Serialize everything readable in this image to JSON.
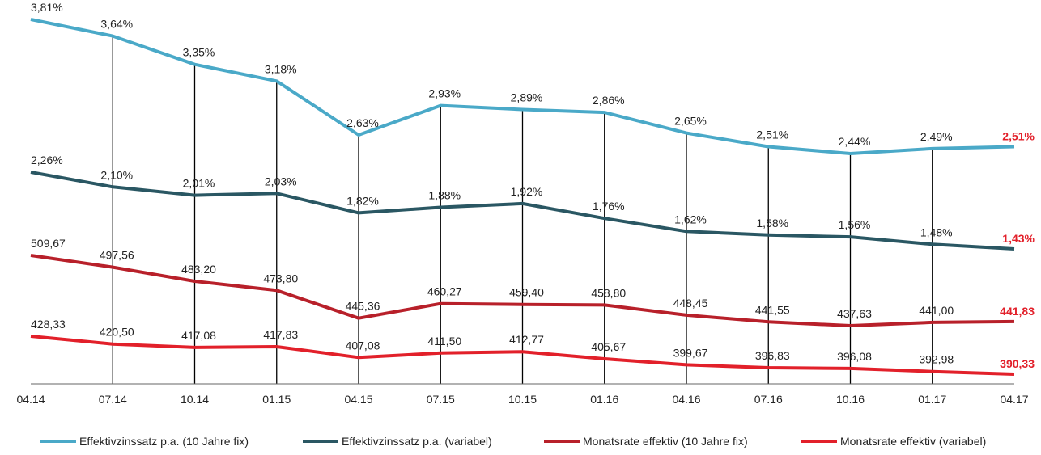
{
  "chart_data": {
    "type": "line",
    "categories": [
      "04.14",
      "07.14",
      "10.14",
      "01.15",
      "04.15",
      "07.15",
      "10.15",
      "01.16",
      "04.16",
      "07.16",
      "10.16",
      "01.17",
      "04.17"
    ],
    "series": [
      {
        "name": "Effektivzinssatz p.a. (10 Jahre fix)",
        "color": "#4aa9c8",
        "values": [
          3.81,
          3.64,
          3.35,
          3.18,
          2.63,
          2.93,
          2.89,
          2.86,
          2.65,
          2.51,
          2.44,
          2.49,
          2.51
        ],
        "labels": [
          "3,81%",
          "3,64%",
          "3,35%",
          "3,18%",
          "2,63%",
          "2,93%",
          "2,89%",
          "2,86%",
          "2,65%",
          "2,51%",
          "2,44%",
          "2,49%",
          "2,51%"
        ]
      },
      {
        "name": "Effektivzinssatz p.a. (variabel)",
        "color": "#2a5763",
        "values": [
          2.26,
          2.1,
          2.01,
          2.03,
          1.82,
          1.88,
          1.92,
          1.76,
          1.62,
          1.58,
          1.56,
          1.48,
          1.43
        ],
        "labels": [
          "2,26%",
          "2,10%",
          "2,01%",
          "2,03%",
          "1,82%",
          "1,88%",
          "1,92%",
          "1,76%",
          "1,62%",
          "1,58%",
          "1,56%",
          "1,48%",
          "1,43%"
        ]
      },
      {
        "name": "Monatsrate effektiv (10 Jahre fix)",
        "color": "#b8202a",
        "values": [
          509.67,
          497.56,
          483.2,
          473.8,
          445.36,
          460.27,
          459.4,
          458.8,
          448.45,
          441.55,
          437.63,
          441.0,
          441.83
        ],
        "labels": [
          "509,67",
          "497,56",
          "483,20",
          "473,80",
          "445,36",
          "460,27",
          "459,40",
          "458,80",
          "448,45",
          "441,55",
          "437,63",
          "441,00",
          "441,83"
        ]
      },
      {
        "name": "Monatsrate effektiv (variabel)",
        "color": "#e2202a",
        "values": [
          428.33,
          420.5,
          417.08,
          417.83,
          407.08,
          411.5,
          412.77,
          405.67,
          399.67,
          396.83,
          396.08,
          392.98,
          390.33
        ],
        "labels": [
          "428,33",
          "420,50",
          "417,08",
          "417,83",
          "407,08",
          "411,50",
          "412,77",
          "405,67",
          "399,67",
          "396,83",
          "396,08",
          "392,98",
          "390,33"
        ]
      }
    ],
    "grid": "vertical",
    "legend_position": "bottom"
  }
}
